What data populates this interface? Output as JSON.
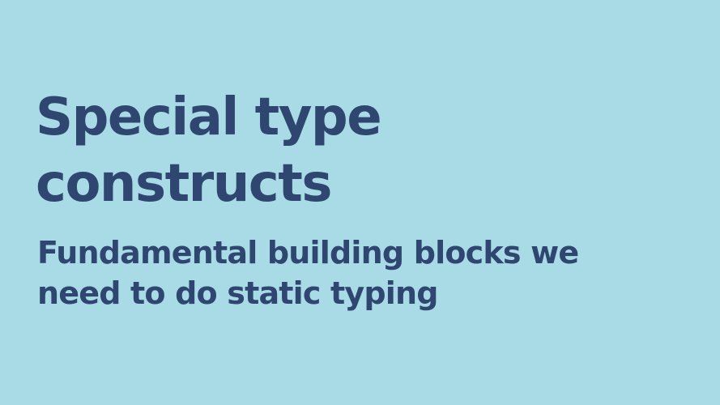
{
  "slide": {
    "background_color": "#a8dbe5",
    "text_color": "#2f4670",
    "title_lines": [
      "Special type",
      "constructs"
    ],
    "subtitle_lines": [
      "Fundamental building blocks we",
      "need to do static typing"
    ]
  }
}
